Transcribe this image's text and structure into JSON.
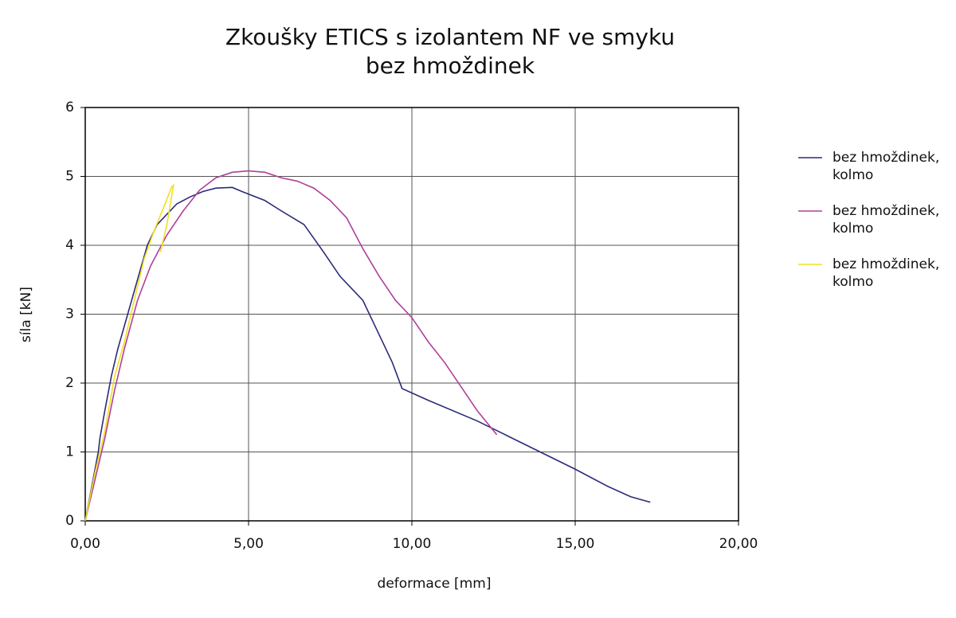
{
  "chart_data": {
    "type": "line",
    "title": [
      "Zkoušky ETICS s izolantem NF ve smyku",
      "bez hmoždinek"
    ],
    "x_label": "deformace [mm]",
    "y_label": "síla [kN]",
    "xlim": [
      0,
      20
    ],
    "xticks": [
      {
        "value": 0,
        "label": "0,00"
      },
      {
        "value": 5,
        "label": "5,00"
      },
      {
        "value": 10,
        "label": "10,00"
      },
      {
        "value": 15,
        "label": "15,00"
      },
      {
        "value": 20,
        "label": "20,00"
      }
    ],
    "ylim": [
      0,
      6
    ],
    "yticks": [
      0,
      1,
      2,
      3,
      4,
      5,
      6
    ],
    "grid": true,
    "series": [
      {
        "name": "bez hmoždinek, kolmo",
        "color": "#2b2b7a",
        "x": [
          0,
          0.2,
          0.4,
          0.45,
          0.6,
          0.8,
          1.0,
          1.3,
          1.6,
          1.9,
          2.2,
          2.5,
          2.8,
          3.2,
          3.6,
          4.0,
          4.5,
          4.8,
          5.5,
          6.0,
          6.7,
          7.3,
          7.8,
          8.5,
          9.0,
          9.4,
          9.7,
          10.5,
          12.0,
          13.5,
          15.0,
          16.0,
          16.7,
          17.3
        ],
        "values": [
          0,
          0.5,
          1.0,
          1.2,
          1.6,
          2.1,
          2.5,
          3.0,
          3.5,
          4.0,
          4.3,
          4.45,
          4.6,
          4.7,
          4.78,
          4.83,
          4.84,
          4.78,
          4.65,
          4.5,
          4.3,
          3.9,
          3.55,
          3.2,
          2.7,
          2.3,
          1.92,
          1.75,
          1.45,
          1.1,
          0.75,
          0.5,
          0.35,
          0.27
        ]
      },
      {
        "name": "bez hmoždinek, kolmo",
        "color": "#b0409a",
        "x": [
          0,
          0.3,
          0.6,
          0.9,
          1.2,
          1.6,
          2.0,
          2.5,
          3.0,
          3.5,
          4.0,
          4.5,
          5.0,
          5.5,
          6.0,
          6.5,
          7.0,
          7.5,
          8.0,
          8.5,
          9.0,
          9.5,
          10.0,
          10.5,
          11.0,
          11.5,
          12.0,
          12.6
        ],
        "values": [
          0,
          0.6,
          1.2,
          1.9,
          2.5,
          3.2,
          3.7,
          4.15,
          4.5,
          4.8,
          4.98,
          5.06,
          5.08,
          5.06,
          4.98,
          4.93,
          4.83,
          4.65,
          4.4,
          3.95,
          3.55,
          3.2,
          2.95,
          2.6,
          2.3,
          1.95,
          1.6,
          1.25
        ]
      },
      {
        "name": "bez hmoždinek, kolmo",
        "color": "#f0e020",
        "x": [
          0,
          0.3,
          0.6,
          0.9,
          1.2,
          1.5,
          1.8,
          2.1,
          2.4,
          2.65,
          2.7,
          2.5,
          2.3
        ],
        "values": [
          0,
          0.7,
          1.3,
          2.1,
          2.6,
          3.2,
          3.8,
          4.2,
          4.55,
          4.85,
          4.87,
          4.3,
          3.9
        ]
      }
    ]
  }
}
